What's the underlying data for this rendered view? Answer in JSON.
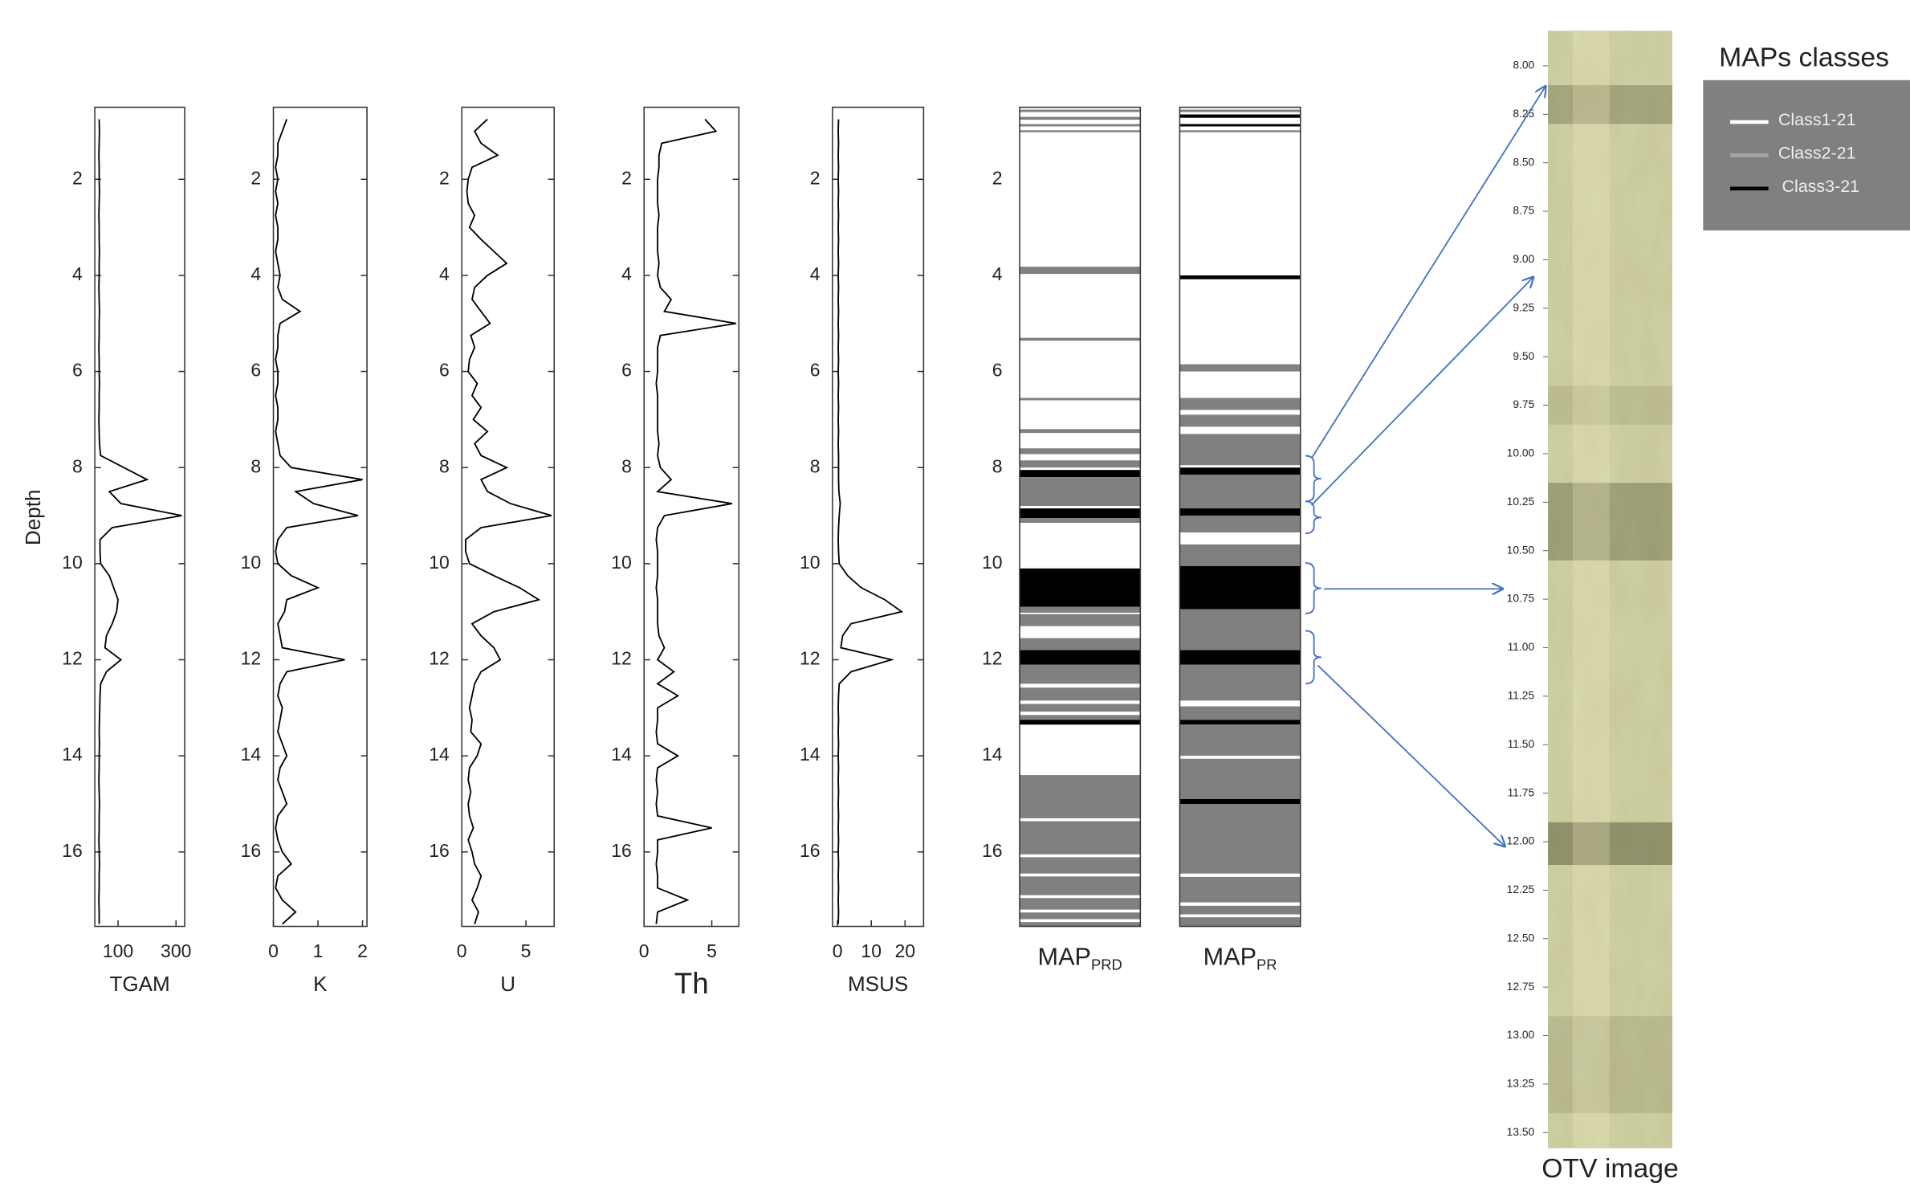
{
  "chart_data": [
    {
      "type": "line",
      "x_label": "TGAM",
      "y_label": "Depth",
      "color": "#000000",
      "depth": [
        0.75,
        1,
        1.25,
        1.5,
        1.75,
        2,
        2.25,
        2.5,
        2.75,
        3,
        3.25,
        3.5,
        3.75,
        4,
        4.25,
        4.5,
        4.75,
        5,
        5.25,
        5.5,
        5.75,
        6,
        6.25,
        6.5,
        6.75,
        7,
        7.25,
        7.5,
        7.75,
        8,
        8.25,
        8.5,
        8.75,
        9,
        9.25,
        9.5,
        9.75,
        10,
        10.25,
        10.5,
        10.75,
        11,
        11.25,
        11.5,
        11.75,
        12,
        12.25,
        12.5,
        12.75,
        13,
        13.25,
        13.5,
        13.75,
        14,
        14.25,
        14.5,
        14.75,
        15,
        15.25,
        15.5,
        15.75,
        16,
        16.25,
        16.5,
        16.75,
        17,
        17.25,
        17.5
      ],
      "values": [
        35,
        36,
        35,
        34,
        35,
        35,
        36,
        35,
        34,
        35,
        35,
        36,
        35,
        35,
        34,
        35,
        36,
        35,
        35,
        34,
        35,
        35,
        36,
        35,
        35,
        34,
        35,
        36,
        40,
        120,
        200,
        70,
        110,
        320,
        80,
        38,
        38,
        40,
        70,
        85,
        100,
        95,
        80,
        60,
        55,
        110,
        60,
        40,
        38,
        37,
        36,
        35,
        36,
        35,
        35,
        34,
        35,
        36,
        35,
        35,
        34,
        35,
        36,
        35,
        35,
        34,
        35,
        35
      ],
      "xlim": [
        20,
        330
      ],
      "xticks": [
        100,
        300
      ],
      "ylim": [
        0.5,
        17.55
      ],
      "yticks": [
        2,
        4,
        6,
        8,
        10,
        12,
        14,
        16
      ]
    },
    {
      "type": "line",
      "x_label": "K",
      "color": "#000000",
      "depth": [
        0.75,
        1,
        1.25,
        1.5,
        1.75,
        2,
        2.25,
        2.5,
        2.75,
        3,
        3.25,
        3.5,
        3.75,
        4,
        4.25,
        4.5,
        4.75,
        5,
        5.25,
        5.5,
        5.75,
        6,
        6.25,
        6.5,
        6.75,
        7,
        7.25,
        7.5,
        7.75,
        8,
        8.25,
        8.5,
        8.75,
        9,
        9.25,
        9.5,
        9.75,
        10,
        10.25,
        10.5,
        10.75,
        11,
        11.25,
        11.5,
        11.75,
        12,
        12.25,
        12.5,
        12.75,
        13,
        13.25,
        13.5,
        13.75,
        14,
        14.25,
        14.5,
        14.75,
        15,
        15.25,
        15.5,
        15.75,
        16,
        16.25,
        16.5,
        16.75,
        17,
        17.25,
        17.5
      ],
      "values": [
        0.3,
        0.2,
        0.1,
        0.1,
        0.05,
        0.1,
        0.05,
        0.1,
        0.05,
        0.1,
        0.1,
        0.05,
        0.1,
        0.15,
        0.1,
        0.2,
        0.6,
        0.15,
        0.1,
        0.1,
        0.05,
        0.1,
        0.1,
        0.05,
        0.1,
        0.1,
        0.05,
        0.1,
        0.15,
        0.4,
        2.0,
        0.5,
        0.9,
        1.9,
        0.3,
        0.1,
        0.05,
        0.1,
        0.4,
        1.0,
        0.3,
        0.25,
        0.1,
        0.15,
        0.2,
        1.6,
        0.3,
        0.15,
        0.1,
        0.2,
        0.15,
        0.1,
        0.2,
        0.3,
        0.15,
        0.1,
        0.2,
        0.3,
        0.1,
        0.05,
        0.1,
        0.2,
        0.4,
        0.1,
        0.05,
        0.2,
        0.5,
        0.2
      ],
      "xlim": [
        0,
        2.1
      ],
      "xticks": [
        0,
        1,
        2
      ],
      "ylim": [
        0.5,
        17.55
      ],
      "yticks": [
        2,
        4,
        6,
        8,
        10,
        12,
        14,
        16
      ]
    },
    {
      "type": "line",
      "x_label": "U",
      "color": "#000000",
      "depth": [
        0.75,
        1,
        1.25,
        1.5,
        1.75,
        2,
        2.25,
        2.5,
        2.75,
        3,
        3.25,
        3.5,
        3.75,
        4,
        4.25,
        4.5,
        4.75,
        5,
        5.25,
        5.5,
        5.75,
        6,
        6.25,
        6.5,
        6.75,
        7,
        7.25,
        7.5,
        7.75,
        8,
        8.25,
        8.5,
        8.75,
        9,
        9.25,
        9.5,
        9.75,
        10,
        10.25,
        10.5,
        10.75,
        11,
        11.25,
        11.5,
        11.75,
        12,
        12.25,
        12.5,
        12.75,
        13,
        13.25,
        13.5,
        13.75,
        14,
        14.25,
        14.5,
        14.75,
        15,
        15.25,
        15.5,
        15.75,
        16,
        16.25,
        16.5,
        16.75,
        17,
        17.25,
        17.5
      ],
      "values": [
        2.0,
        1.0,
        1.5,
        2.8,
        0.8,
        0.5,
        0.4,
        0.5,
        1.0,
        0.6,
        1.5,
        2.5,
        3.5,
        2.0,
        1.0,
        0.8,
        1.5,
        2.2,
        0.7,
        1.0,
        0.6,
        0.5,
        1.2,
        0.8,
        1.5,
        0.9,
        2.0,
        1.0,
        1.5,
        3.5,
        1.5,
        2.0,
        3.8,
        7.0,
        1.5,
        0.3,
        0.3,
        0.6,
        2.5,
        4.5,
        6.0,
        2.5,
        0.8,
        1.5,
        2.5,
        3.0,
        1.5,
        1.0,
        0.8,
        0.6,
        0.8,
        0.7,
        1.5,
        1.2,
        0.6,
        0.5,
        0.7,
        0.5,
        0.6,
        0.9,
        0.5,
        0.8,
        1.0,
        1.5,
        1.2,
        0.8,
        1.3,
        1.0
      ],
      "xlim": [
        0,
        7.2
      ],
      "xticks": [
        0,
        5
      ],
      "ylim": [
        0.5,
        17.55
      ],
      "yticks": [
        2,
        4,
        6,
        8,
        10,
        12,
        14,
        16
      ]
    },
    {
      "type": "line",
      "x_label": "Th",
      "color": "#000000",
      "depth": [
        0.75,
        1,
        1.25,
        1.5,
        1.75,
        2,
        2.25,
        2.5,
        2.75,
        3,
        3.25,
        3.5,
        3.75,
        4,
        4.25,
        4.5,
        4.75,
        5,
        5.25,
        5.5,
        5.75,
        6,
        6.25,
        6.5,
        6.75,
        7,
        7.25,
        7.5,
        7.75,
        8,
        8.25,
        8.5,
        8.75,
        9,
        9.25,
        9.5,
        9.75,
        10,
        10.25,
        10.5,
        10.75,
        11,
        11.25,
        11.5,
        11.75,
        12,
        12.25,
        12.5,
        12.75,
        13,
        13.25,
        13.5,
        13.75,
        14,
        14.25,
        14.5,
        14.75,
        15,
        15.25,
        15.5,
        15.75,
        16,
        16.25,
        16.5,
        16.75,
        17,
        17.25,
        17.5
      ],
      "values": [
        4.5,
        5.3,
        1.3,
        1.1,
        1.1,
        1.0,
        1.0,
        1.0,
        1.1,
        1.0,
        1.0,
        1.0,
        1.1,
        1.0,
        1.2,
        2.0,
        1.5,
        6.8,
        1.2,
        1.0,
        1.0,
        1.0,
        0.9,
        1.0,
        1.0,
        1.0,
        1.0,
        1.1,
        1.0,
        1.2,
        2.0,
        1.0,
        6.5,
        1.5,
        1.0,
        0.9,
        1.0,
        1.0,
        1.0,
        0.9,
        1.0,
        1.0,
        1.0,
        1.1,
        1.5,
        1.0,
        2.2,
        1.0,
        2.5,
        1.0,
        1.0,
        0.9,
        1.0,
        2.5,
        1.0,
        0.9,
        1.0,
        0.9,
        1.0,
        5.0,
        1.0,
        1.0,
        0.9,
        1.0,
        1.0,
        3.2,
        1.0,
        0.9
      ],
      "xlim": [
        0,
        7
      ],
      "xticks": [
        0,
        5
      ],
      "ylim": [
        0.5,
        17.55
      ],
      "yticks": [
        2,
        4,
        6,
        8,
        10,
        12,
        14,
        16
      ]
    },
    {
      "type": "line",
      "x_label": "MSUS",
      "color": "#000000",
      "depth": [
        0.75,
        1,
        1.25,
        1.5,
        1.75,
        2,
        2.25,
        2.5,
        2.75,
        3,
        3.25,
        3.5,
        3.75,
        4,
        4.25,
        4.5,
        4.75,
        5,
        5.25,
        5.5,
        5.75,
        6,
        6.25,
        6.5,
        6.75,
        7,
        7.25,
        7.5,
        7.75,
        8,
        8.25,
        8.5,
        8.75,
        9,
        9.25,
        9.5,
        9.75,
        10,
        10.25,
        10.5,
        10.75,
        11,
        11.25,
        11.5,
        11.75,
        12,
        12.25,
        12.5,
        12.75,
        13,
        13.25,
        13.5,
        13.75,
        14,
        14.25,
        14.5,
        14.75,
        15,
        15.25,
        15.5,
        15.75,
        16,
        16.25,
        16.5,
        16.75,
        17,
        17.25,
        17.5
      ],
      "values": [
        0.3,
        0.2,
        0.3,
        0.2,
        0.3,
        0.2,
        0.3,
        0.2,
        0.3,
        0.2,
        0.3,
        0.2,
        0.3,
        0.2,
        0.3,
        0.2,
        0.3,
        0.2,
        0.3,
        0.2,
        0.3,
        0.2,
        0.3,
        0.2,
        0.3,
        0.2,
        0.3,
        0.2,
        0.3,
        0.3,
        0.3,
        0.4,
        0.8,
        0.5,
        0.3,
        0.2,
        0.3,
        0.5,
        3,
        7,
        14,
        19,
        4,
        1.5,
        1,
        16,
        4,
        0.5,
        0.3,
        0.2,
        0.3,
        0.2,
        0.3,
        0.2,
        0.3,
        0.2,
        0.3,
        0.2,
        0.3,
        0.2,
        0.3,
        0.2,
        0.3,
        0.2,
        0.3,
        0.2,
        0.3,
        0.2
      ],
      "xlim": [
        -1.5,
        25.5
      ],
      "xticks": [
        0,
        10,
        20
      ],
      "ylim": [
        0.5,
        17.55
      ],
      "yticks": [
        2,
        4,
        6,
        8,
        10,
        12,
        14,
        16
      ]
    },
    {
      "type": "column",
      "label": "MAP",
      "label_sub": "PRD",
      "ylim": [
        0.5,
        17.55
      ],
      "yticks": [
        2,
        4,
        6,
        8,
        10,
        12,
        14,
        16
      ],
      "intervals": [
        {
          "top": 0.55,
          "base": 0.6,
          "class": 1
        },
        {
          "top": 0.7,
          "base": 0.76,
          "class": 1
        },
        {
          "top": 0.85,
          "base": 0.9,
          "class": 1
        },
        {
          "top": 0.98,
          "base": 1.02,
          "class": 1
        },
        {
          "top": 3.82,
          "base": 3.97,
          "class": 1
        },
        {
          "top": 5.3,
          "base": 5.36,
          "class": 1
        },
        {
          "top": 6.55,
          "base": 6.6,
          "class": 1
        },
        {
          "top": 7.2,
          "base": 7.28,
          "class": 1
        },
        {
          "top": 7.6,
          "base": 7.72,
          "class": 1
        },
        {
          "top": 7.85,
          "base": 8.0,
          "class": 1
        },
        {
          "top": 8.05,
          "base": 8.2,
          "class": 2
        },
        {
          "top": 8.2,
          "base": 8.8,
          "class": 1
        },
        {
          "top": 8.85,
          "base": 9.05,
          "class": 2
        },
        {
          "top": 9.05,
          "base": 9.15,
          "class": 1
        },
        {
          "top": 10.1,
          "base": 10.9,
          "class": 2
        },
        {
          "top": 10.9,
          "base": 11.02,
          "class": 1
        },
        {
          "top": 11.05,
          "base": 11.3,
          "class": 1
        },
        {
          "top": 11.55,
          "base": 11.8,
          "class": 1
        },
        {
          "top": 11.8,
          "base": 12.1,
          "class": 2
        },
        {
          "top": 12.1,
          "base": 13.25,
          "class": 1
        },
        {
          "top": 12.5,
          "base": 12.58,
          "class": 0
        },
        {
          "top": 12.85,
          "base": 12.92,
          "class": 0
        },
        {
          "top": 13.08,
          "base": 13.15,
          "class": 0
        },
        {
          "top": 13.25,
          "base": 13.35,
          "class": 2
        },
        {
          "top": 14.4,
          "base": 17.55,
          "class": 1
        },
        {
          "top": 15.3,
          "base": 15.36,
          "class": 0
        },
        {
          "top": 16.05,
          "base": 16.11,
          "class": 0
        },
        {
          "top": 16.45,
          "base": 16.51,
          "class": 0
        },
        {
          "top": 16.9,
          "base": 16.96,
          "class": 0
        },
        {
          "top": 17.2,
          "base": 17.26,
          "class": 0
        },
        {
          "top": 17.4,
          "base": 17.46,
          "class": 0
        }
      ]
    },
    {
      "type": "column",
      "label": "MAP",
      "label_sub": "PR",
      "ylim": [
        0.5,
        17.55
      ],
      "intervals": [
        {
          "top": 0.55,
          "base": 0.6,
          "class": 1
        },
        {
          "top": 0.65,
          "base": 0.72,
          "class": 2
        },
        {
          "top": 0.85,
          "base": 0.9,
          "class": 2
        },
        {
          "top": 0.98,
          "base": 1.02,
          "class": 1
        },
        {
          "top": 4.0,
          "base": 4.08,
          "class": 2
        },
        {
          "top": 5.85,
          "base": 6.0,
          "class": 1
        },
        {
          "top": 6.55,
          "base": 6.8,
          "class": 1
        },
        {
          "top": 6.9,
          "base": 7.15,
          "class": 1
        },
        {
          "top": 7.3,
          "base": 7.95,
          "class": 1
        },
        {
          "top": 8.0,
          "base": 8.15,
          "class": 2
        },
        {
          "top": 8.15,
          "base": 8.85,
          "class": 1
        },
        {
          "top": 8.85,
          "base": 9.0,
          "class": 2
        },
        {
          "top": 9.0,
          "base": 9.35,
          "class": 1
        },
        {
          "top": 9.6,
          "base": 10.05,
          "class": 1
        },
        {
          "top": 10.05,
          "base": 10.95,
          "class": 2
        },
        {
          "top": 10.95,
          "base": 11.8,
          "class": 1
        },
        {
          "top": 11.8,
          "base": 12.1,
          "class": 2
        },
        {
          "top": 12.1,
          "base": 12.85,
          "class": 1
        },
        {
          "top": 12.97,
          "base": 13.25,
          "class": 1
        },
        {
          "top": 13.25,
          "base": 13.35,
          "class": 2
        },
        {
          "top": 13.35,
          "base": 17.55,
          "class": 1
        },
        {
          "top": 14.0,
          "base": 14.06,
          "class": 0
        },
        {
          "top": 14.9,
          "base": 15.0,
          "class": 2
        },
        {
          "top": 16.45,
          "base": 16.52,
          "class": 0
        },
        {
          "top": 17.05,
          "base": 17.12,
          "class": 0
        },
        {
          "top": 17.3,
          "base": 17.36,
          "class": 0
        }
      ]
    },
    {
      "type": "image",
      "label": "OTV image",
      "ylim": [
        7.82,
        13.58
      ],
      "yticks": [
        {
          "value": 8,
          "label": "8.00"
        },
        {
          "value": 8.25,
          "label": "8.25"
        },
        {
          "value": 8.5,
          "label": "8.50"
        },
        {
          "value": 8.75,
          "label": "8.75"
        },
        {
          "value": 9,
          "label": "9.00"
        },
        {
          "value": 9.25,
          "label": "9.25"
        },
        {
          "value": 9.5,
          "label": "9.50"
        },
        {
          "value": 9.75,
          "label": "9.75"
        },
        {
          "value": 10,
          "label": "10.00"
        },
        {
          "value": 10.25,
          "label": "10.25"
        },
        {
          "value": 10.5,
          "label": "10.50"
        },
        {
          "value": 10.75,
          "label": "10.75"
        },
        {
          "value": 11,
          "label": "11.00"
        },
        {
          "value": 11.25,
          "label": "11.25"
        },
        {
          "value": 11.5,
          "label": "11.50"
        },
        {
          "value": 11.75,
          "label": "11.75"
        },
        {
          "value": 12,
          "label": "12.00"
        },
        {
          "value": 12.25,
          "label": "12.25"
        },
        {
          "value": 12.5,
          "label": "12.50"
        },
        {
          "value": 12.75,
          "label": "12.75"
        },
        {
          "value": 13,
          "label": "13.00"
        },
        {
          "value": 13.25,
          "label": "13.25"
        },
        {
          "value": 13.5,
          "label": "13.50"
        }
      ]
    },
    {
      "type": "legend",
      "title": "MAPs classes",
      "classes": [
        {
          "name": "Class1-21",
          "color": "#ffffff"
        },
        {
          "name": "Class2-21",
          "color": "#808080"
        },
        {
          "name": "Class3-21",
          "color": "#000000"
        }
      ]
    }
  ]
}
